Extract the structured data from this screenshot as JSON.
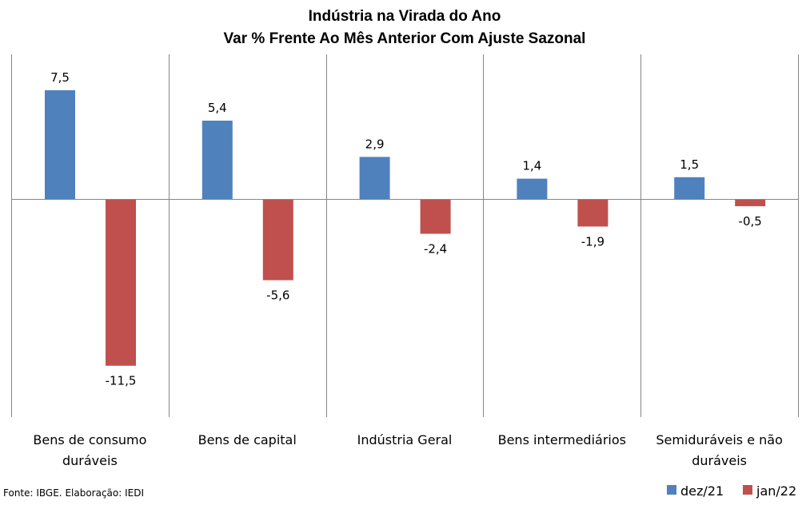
{
  "chart_data": {
    "type": "bar",
    "title": "Indústria na Virada do Ano",
    "subtitle": "Var % Frente Ao Mês Anterior Com Ajuste Sazonal",
    "categories": [
      [
        "Bens de consumo",
        "duráveis"
      ],
      [
        "Bens de capital"
      ],
      [
        "Indústria Geral"
      ],
      [
        "Bens intermediários"
      ],
      [
        "Semiduráveis e não",
        "duráveis"
      ]
    ],
    "series": [
      {
        "name": "dez/21",
        "color": "#4f81bd",
        "values": [
          7.5,
          5.4,
          2.9,
          1.4,
          1.5
        ],
        "labels": [
          "7,5",
          "5,4",
          "2,9",
          "1,4",
          "1,5"
        ]
      },
      {
        "name": "jan/22",
        "color": "#c0504d",
        "values": [
          -11.5,
          -5.6,
          -2.4,
          -1.9,
          -0.5
        ],
        "labels": [
          "-11,5",
          "-5,6",
          "-2,4",
          "-1,9",
          "-0,5"
        ]
      }
    ],
    "ylim": [
      -15,
      10
    ],
    "grid": "vertical category separators",
    "legend": "bottom-right"
  },
  "source": "Fonte: IBGE. Elaboração: IEDI"
}
